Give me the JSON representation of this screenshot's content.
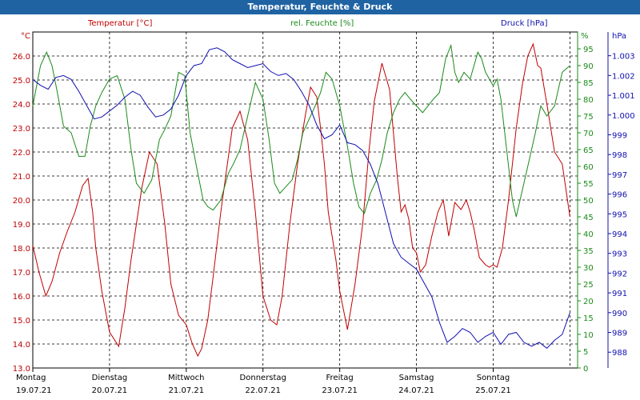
{
  "chart_data": {
    "type": "line",
    "title": "Temperatur, Feuchte & Druck",
    "x_days": [
      {
        "name": "Montag",
        "date": "19.07.21"
      },
      {
        "name": "Dienstag",
        "date": "20.07.21"
      },
      {
        "name": "Mittwoch",
        "date": "21.07.21"
      },
      {
        "name": "Donnerstag",
        "date": "22.07.21"
      },
      {
        "name": "Freitag",
        "date": "23.07.21"
      },
      {
        "name": "Samstag",
        "date": "24.07.21"
      },
      {
        "name": "Sonntag",
        "date": "25.07.21"
      }
    ],
    "xlim": [
      0,
      7.1
    ],
    "grid": true,
    "axes": {
      "temperature": {
        "label": "Temperatur [°C]",
        "unit": "°C",
        "color": "#c00000",
        "lim": [
          13.0,
          27.0
        ],
        "ticks": [
          "13.0",
          "14.0",
          "15.0",
          "16.0",
          "17.0",
          "18.0",
          "19.0",
          "20.0",
          "21.0",
          "22.0",
          "23.0",
          "24.0",
          "25.0",
          "26.0"
        ]
      },
      "humidity": {
        "label": "rel. Feuchte [%]",
        "unit": "%",
        "color": "#1a8a1a",
        "lim": [
          0,
          100
        ],
        "ticks": [
          "0",
          "5",
          "10",
          "15",
          "20",
          "25",
          "30",
          "35",
          "40",
          "45",
          "50",
          "55",
          "60",
          "65",
          "70",
          "75",
          "80",
          "85",
          "90",
          "95"
        ]
      },
      "pressure": {
        "label": "Druck [hPa]",
        "unit": "hPa",
        "color": "#1010b0",
        "lim": [
          987.2,
          1004.2
        ],
        "ticks": [
          "988",
          "989",
          "990",
          "991",
          "992",
          "993",
          "994",
          "995",
          "996",
          "997",
          "998",
          "999",
          "1.000",
          "1.001",
          "1.002",
          "1.003"
        ]
      }
    },
    "series": [
      {
        "name": "Temperatur",
        "axis": "temperature",
        "color": "#c00000",
        "x": [
          0.0,
          0.08,
          0.17,
          0.25,
          0.35,
          0.45,
          0.55,
          0.65,
          0.72,
          0.78,
          0.82,
          0.9,
          1.0,
          1.12,
          1.2,
          1.28,
          1.35,
          1.42,
          1.52,
          1.62,
          1.72,
          1.8,
          1.9,
          2.0,
          2.08,
          2.15,
          2.2,
          2.28,
          2.35,
          2.45,
          2.6,
          2.7,
          2.8,
          2.9,
          3.0,
          3.1,
          3.18,
          3.25,
          3.35,
          3.45,
          3.55,
          3.62,
          3.7,
          3.75,
          3.8,
          3.85,
          3.9,
          3.95,
          4.0,
          4.1,
          4.2,
          4.3,
          4.38,
          4.45,
          4.55,
          4.65,
          4.75,
          4.8,
          4.85,
          4.9,
          4.95,
          5.0,
          5.05,
          5.12,
          5.2,
          5.28,
          5.35,
          5.42,
          5.5,
          5.58,
          5.65,
          5.7,
          5.75,
          5.82,
          5.9,
          5.95,
          6.0,
          6.05,
          6.12,
          6.2,
          6.3,
          6.38,
          6.45,
          6.52,
          6.58,
          6.62,
          6.7,
          6.8,
          6.9,
          7.0
        ],
        "y": [
          18.1,
          17.0,
          16.0,
          16.6,
          17.8,
          18.7,
          19.5,
          20.6,
          20.9,
          19.5,
          18.0,
          16.2,
          14.5,
          13.9,
          15.5,
          17.5,
          19.0,
          20.5,
          22.0,
          21.5,
          19.0,
          16.5,
          15.2,
          14.8,
          14.0,
          13.5,
          13.8,
          15.0,
          16.8,
          19.5,
          23.0,
          23.7,
          22.5,
          19.5,
          16.0,
          15.0,
          14.8,
          16.0,
          19.0,
          21.5,
          23.5,
          24.7,
          24.3,
          23.0,
          21.5,
          19.5,
          18.5,
          17.5,
          16.2,
          14.6,
          16.5,
          19.0,
          22.0,
          24.1,
          25.7,
          24.6,
          21.0,
          19.5,
          19.8,
          19.2,
          18.0,
          17.8,
          17.0,
          17.3,
          18.5,
          19.5,
          20.0,
          18.5,
          19.9,
          19.6,
          20.0,
          19.5,
          18.8,
          17.6,
          17.3,
          17.2,
          17.3,
          17.2,
          18.0,
          20.0,
          23.0,
          24.8,
          26.0,
          26.5,
          25.6,
          25.5,
          24.0,
          22.0,
          21.5,
          19.3
        ]
      },
      {
        "name": "rel. Feuchte",
        "axis": "humidity",
        "color": "#1a8a1a",
        "x": [
          0.0,
          0.1,
          0.18,
          0.25,
          0.32,
          0.4,
          0.5,
          0.6,
          0.68,
          0.75,
          0.82,
          0.9,
          1.0,
          1.1,
          1.2,
          1.28,
          1.35,
          1.45,
          1.55,
          1.65,
          1.72,
          1.8,
          1.9,
          1.98,
          2.05,
          2.15,
          2.22,
          2.28,
          2.35,
          2.45,
          2.55,
          2.62,
          2.7,
          2.8,
          2.9,
          3.0,
          3.08,
          3.15,
          3.22,
          3.3,
          3.38,
          3.45,
          3.52,
          3.6,
          3.68,
          3.75,
          3.82,
          3.9,
          4.0,
          4.1,
          4.18,
          4.25,
          4.32,
          4.4,
          4.48,
          4.55,
          4.62,
          4.7,
          4.78,
          4.85,
          4.92,
          5.0,
          5.08,
          5.15,
          5.22,
          5.3,
          5.38,
          5.45,
          5.5,
          5.55,
          5.62,
          5.7,
          5.75,
          5.8,
          5.85,
          5.9,
          5.95,
          6.0,
          6.05,
          6.1,
          6.15,
          6.2,
          6.25,
          6.3,
          6.35,
          6.45,
          6.55,
          6.62,
          6.7,
          6.8,
          6.9,
          7.0
        ],
        "y": [
          78,
          90,
          94,
          90,
          82,
          72,
          70,
          63,
          63,
          72,
          78,
          82,
          86,
          87,
          80,
          65,
          55,
          52,
          56,
          68,
          71,
          75,
          88,
          87,
          70,
          58,
          50,
          48,
          47,
          50,
          58,
          61,
          65,
          75,
          85,
          80,
          68,
          55,
          52,
          54,
          56,
          62,
          70,
          74,
          78,
          82,
          88,
          86,
          78,
          66,
          55,
          48,
          46,
          52,
          56,
          62,
          70,
          76,
          80,
          82,
          80,
          78,
          76,
          78,
          80,
          82,
          92,
          96,
          88,
          85,
          88,
          86,
          90,
          94,
          92,
          88,
          86,
          84,
          86,
          80,
          70,
          60,
          50,
          45,
          50,
          60,
          70,
          78,
          75,
          78,
          88,
          90
        ]
      },
      {
        "name": "Druck",
        "axis": "pressure",
        "color": "#1010b0",
        "x": [
          0.0,
          0.1,
          0.2,
          0.3,
          0.4,
          0.5,
          0.6,
          0.7,
          0.8,
          0.9,
          1.0,
          1.1,
          1.2,
          1.3,
          1.4,
          1.5,
          1.6,
          1.7,
          1.8,
          1.9,
          2.0,
          2.1,
          2.2,
          2.3,
          2.4,
          2.5,
          2.6,
          2.7,
          2.8,
          2.9,
          3.0,
          3.1,
          3.2,
          3.3,
          3.4,
          3.5,
          3.6,
          3.7,
          3.8,
          3.9,
          4.0,
          4.1,
          4.2,
          4.3,
          4.4,
          4.5,
          4.6,
          4.7,
          4.8,
          4.9,
          5.0,
          5.1,
          5.2,
          5.3,
          5.4,
          5.5,
          5.6,
          5.7,
          5.8,
          5.9,
          6.0,
          6.1,
          6.2,
          6.3,
          6.4,
          6.5,
          6.6,
          6.7,
          6.8,
          6.9,
          7.0
        ],
        "y": [
          1001.8,
          1001.5,
          1001.3,
          1001.9,
          1002.0,
          1001.8,
          1001.2,
          1000.5,
          999.8,
          999.9,
          1000.2,
          1000.5,
          1000.9,
          1001.2,
          1001.0,
          1000.4,
          999.9,
          1000.0,
          1000.3,
          1001.0,
          1002.0,
          1002.5,
          1002.6,
          1003.3,
          1003.4,
          1003.2,
          1002.8,
          1002.6,
          1002.4,
          1002.5,
          1002.6,
          1002.2,
          1002.0,
          1002.1,
          1001.8,
          1001.2,
          1000.5,
          999.5,
          998.8,
          999.0,
          999.5,
          998.6,
          998.5,
          998.2,
          997.5,
          996.5,
          995.0,
          993.5,
          992.8,
          992.5,
          992.2,
          991.5,
          990.8,
          989.5,
          988.5,
          988.8,
          989.2,
          989.0,
          988.5,
          988.8,
          989.0,
          988.4,
          988.9,
          989.0,
          988.5,
          988.3,
          988.5,
          988.2,
          988.6,
          988.9,
          990.0
        ]
      }
    ]
  }
}
